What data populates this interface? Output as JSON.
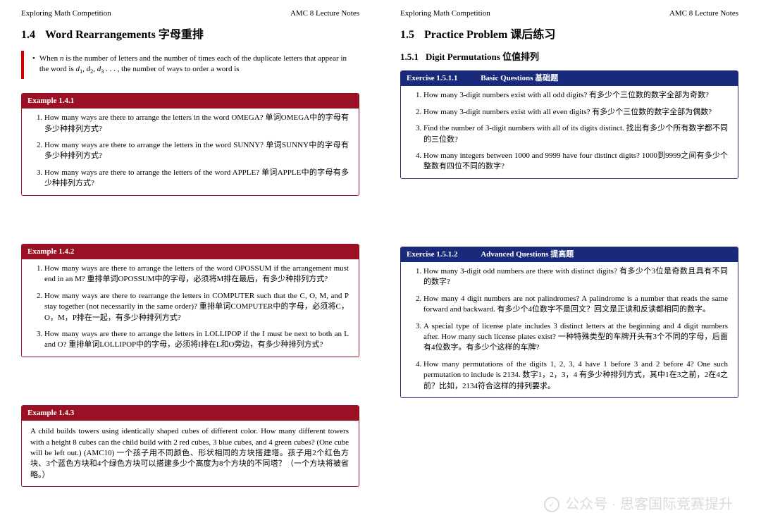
{
  "colors": {
    "red_accent": "#9a1024",
    "red_bar": "#d00000",
    "blue_accent": "#1a2a7a",
    "text": "#000000",
    "watermark": "#cccccc",
    "background": "#ffffff"
  },
  "typography": {
    "body_family": "Times New Roman / SimSun",
    "body_size_pt": 11,
    "section_title_size_pt": 16,
    "subsection_title_size_pt": 13,
    "box_header_weight": "bold"
  },
  "header": {
    "left": "Exploring Math Competition",
    "right": "AMC 8 Lecture Notes"
  },
  "left_page": {
    "section_num": "1.4",
    "section_title": "Word Rearrangements 字母重排",
    "intro_bullet": "When n is the number of letters and the number of times each of the duplicate letters that appear in the word is d₁, d₂, d₃ . . . , the number of ways to order a word is",
    "example1": {
      "label": "Example  1.4.1",
      "items": [
        "How many ways are there to arrange the letters in the word OMEGA? 单词OMEGA中的字母有多少种排列方式?",
        "How many ways are there to arrange the letters in the word SUNNY? 单词SUNNY中的字母有多少种排列方式?",
        "How many ways are there to arrange the letters of the word APPLE? 单词APPLE中的字母有多少种排列方式?"
      ]
    },
    "example2": {
      "label": "Example  1.4.2",
      "items": [
        "How many ways are there to arrange the letters of the word OPOSSUM if the arrangement must end in an M? 重排单词OPOSSUM中的字母，必须将M排在最后，有多少种排列方式?",
        "How many ways are there to rearrange the letters in COMPUTER such that the C, O, M, and P stay together (not necessarily in the same order)? 重排单词COMPUTER中的字母，必须将C，O，M，P排在一起，有多少种排列方式?",
        "How many ways are there to arrange the letters in LOLLIPOP if the I must be next to both an L and O? 重排单词LOLLIPOP中的字母，必须将I排在L和O旁边，有多少种排列方式?"
      ]
    },
    "example3": {
      "label": "Example  1.4.3",
      "body": "A child builds towers using identically shaped cubes of different color. How many different towers with a height 8 cubes can the child build with 2 red cubes, 3 blue cubes, and 4 green cubes? (One cube will be left out.)  (AMC10)\n一个孩子用不同颜色、形状相同的方块搭建塔。孩子用2个红色方块、3个蓝色方块和4个绿色方块可以搭建多少个高度为8个方块的不同塔？（一个方块将被省略。）"
    }
  },
  "right_page": {
    "section_num": "1.5",
    "section_title": "Practice Problem 课后练习",
    "subsection_num": "1.5.1",
    "subsection_title": "Digit Permutations 位值排列",
    "exercise1": {
      "label": "Exercise  1.5.1.1",
      "label2": "Basic Questions 基础题",
      "items": [
        "How many 3-digit numbers exist with all odd digits? 有多少个三位数的数字全部为奇数?",
        "How many 3-digit numbers exist with all even digits? 有多少个三位数的数字全部为偶数?",
        "Find the number of 3-digit numbers with all of its digits distinct. 找出有多少个所有数字都不同的三位数?",
        "How many integers between 1000 and 9999 have four distinct digits? 1000到9999之间有多少个整数有四位不同的数字?"
      ]
    },
    "exercise2": {
      "label": "Exercise  1.5.1.2",
      "label2": "Advanced Questions 提高题",
      "items": [
        "How many 3-digit odd numbers are there with distinct digits? 有多少个3位是奇数且具有不同的数字?",
        "How many 4 digit numbers are not palindromes? A palindrome is a number that reads the same forward and backward. 有多少个4位数字不是回文？回文是正读和反读都相同的数字。",
        "A special type of license plate includes 3 distinct letters at the beginning and 4 digit numbers after. How many such license plates exist? 一种特殊类型的车牌开头有3个不同的字母，后面有4位数字。有多少个这样的车牌?",
        "How many permutations of the digits 1, 2, 3, 4 have 1 before 3 and 2 before 4? One such permutation to include is 2134. 数字1，2，3，4 有多少种排列方式，其中1在3之前，2在4之前？比如，2134符合这样的排列要求。"
      ]
    }
  },
  "watermark": {
    "text": "公众号 · 思客国际竞赛提升",
    "icon_label": "wechat"
  }
}
